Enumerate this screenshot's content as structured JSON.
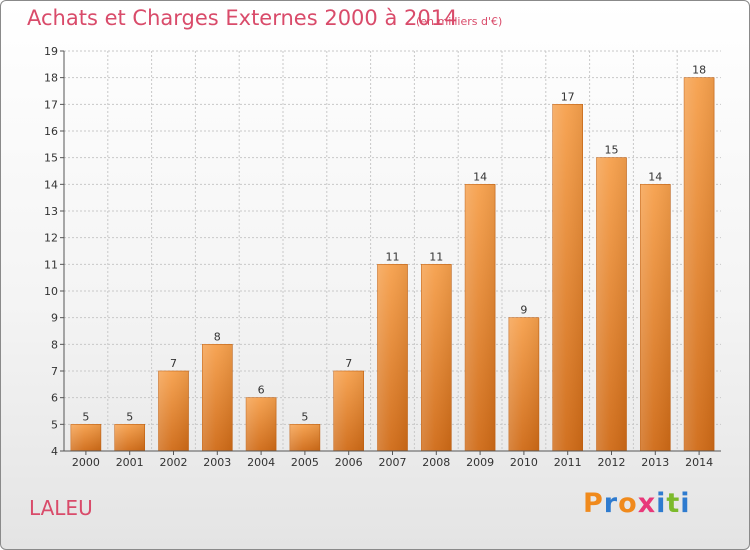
{
  "header": {
    "title": "Achats et Charges Externes 2000 à 2014",
    "subtitle": "(en milliers d'€)"
  },
  "footer": {
    "place": "LALEU",
    "brand": "Proxiti",
    "brand_letters": [
      {
        "ch": "P",
        "color": "#f08a1c"
      },
      {
        "ch": "r",
        "color": "#2e7bcf"
      },
      {
        "ch": "o",
        "color": "#f08a1c"
      },
      {
        "ch": "x",
        "color": "#e8387a"
      },
      {
        "ch": "i",
        "color": "#2e7bcf"
      },
      {
        "ch": "t",
        "color": "#7cba2c"
      },
      {
        "ch": "i",
        "color": "#2e7bcf"
      }
    ]
  },
  "colors": {
    "bar_top": "#f6a04c",
    "bar_bottom": "#cf6a16",
    "title": "#d94b6a",
    "grid": "#c8c8c8"
  },
  "chart_data": {
    "type": "bar",
    "title": "Achats et Charges Externes 2000 à 2014",
    "subtitle": "(en milliers d'€)",
    "categories": [
      "2000",
      "2001",
      "2002",
      "2003",
      "2004",
      "2005",
      "2006",
      "2007",
      "2008",
      "2009",
      "2010",
      "2011",
      "2012",
      "2013",
      "2014"
    ],
    "values": [
      5,
      5,
      7,
      8,
      6,
      5,
      7,
      11,
      11,
      14,
      9,
      17,
      15,
      14,
      18
    ],
    "data_labels": [
      "5",
      "5",
      "7",
      "8",
      "6",
      "5",
      "7",
      "11",
      "11",
      "14",
      "9",
      "17",
      "15",
      "14",
      "18"
    ],
    "y_ticks": [
      "4",
      "5",
      "6",
      "7",
      "8",
      "9",
      "10",
      "11",
      "12",
      "13",
      "14",
      "15",
      "16",
      "17",
      "18",
      "19"
    ],
    "ylim": [
      4,
      19
    ],
    "xlabel": "",
    "ylabel": "",
    "grid": true,
    "legend": "none"
  }
}
